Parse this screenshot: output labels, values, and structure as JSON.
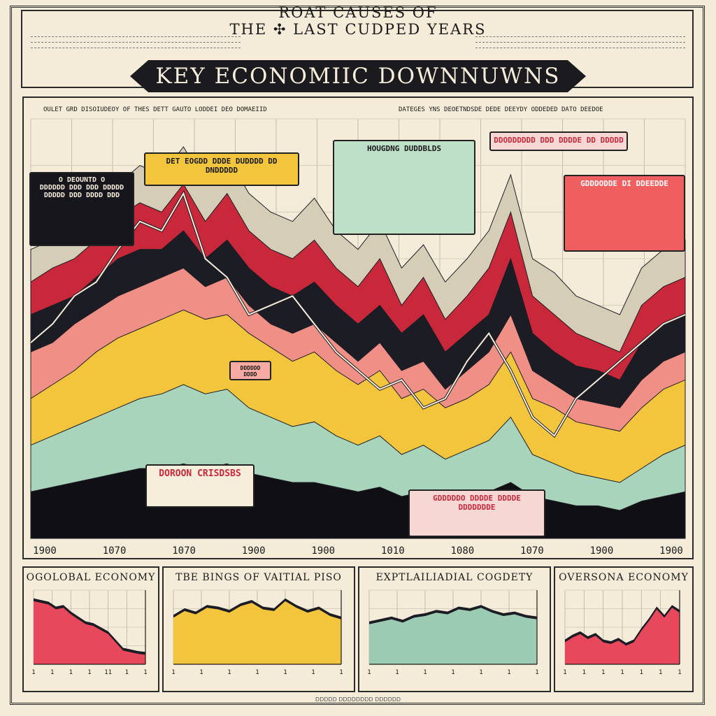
{
  "header": {
    "super_title_line1": "ROAT CAUSES OF",
    "super_title_line2": "THE ✣ LAST CUDPED YEARS",
    "title": "KEY ECONOMIIC DOWNNUWNS",
    "subtitle_left": "OULET GRD DISOIUDEOY OF THES DETT GAUTO LODDEI DEO DOMAEIID",
    "subtitle_right": "DATEGES YNS DEOETNDSDE DEDE DEEYDY ODDEDED DATO DEEDOE"
  },
  "callouts": {
    "black_box": "O DEOUNTD O\nDDDDDD DDD DDD DDDDD\nDDDDD DDD DDDD DDD",
    "yellow_box": "DET EOGDD DDDE DUDDDD DD DNDDDDD",
    "housing": "HOUGDNG DUDDBLDS",
    "pink_top": "DDODDDDDD DDD DDDDE DD DDDDD",
    "red_box": "GDDDODDE DI DDEEDDE",
    "crisis": "DOROON CRISDSBS",
    "pink_bottom": "GDDDDDO DDDDE DDDDE DDDDDDDE",
    "small_pink": "DDDDDD DDDD"
  },
  "chart_data": [
    {
      "type": "area",
      "title": "KEY ECONOMIIC DOWNNUWNS",
      "xlabel": "",
      "ylabel": "",
      "x_tick_labels": [
        "1900",
        "1070",
        "1070",
        "1900",
        "1900",
        "1010",
        "1080",
        "1070",
        "1900",
        "1900"
      ],
      "grid": true,
      "legend": "none",
      "x": [
        0,
        1,
        2,
        3,
        4,
        5,
        6,
        7,
        8,
        9,
        10,
        11,
        12,
        13,
        14,
        15,
        16,
        17,
        18,
        19,
        20,
        21,
        22,
        23,
        24,
        25,
        26,
        27,
        28,
        29,
        30
      ],
      "series": [
        {
          "color": "#d6cdb7",
          "values": [
            62,
            64,
            66,
            71,
            76,
            80,
            78,
            84,
            76,
            82,
            74,
            70,
            68,
            73,
            66,
            62,
            68,
            58,
            63,
            55,
            60,
            66,
            78,
            60,
            57,
            52,
            50,
            48,
            58,
            62,
            64
          ]
        },
        {
          "color": "#c8283a",
          "values": [
            55,
            58,
            60,
            64,
            69,
            72,
            70,
            76,
            68,
            74,
            66,
            62,
            60,
            64,
            58,
            54,
            60,
            50,
            56,
            47,
            52,
            58,
            70,
            52,
            48,
            44,
            42,
            40,
            50,
            54,
            56
          ]
        },
        {
          "color": "#1c1c24",
          "values": [
            48,
            50,
            52,
            56,
            60,
            62,
            62,
            66,
            60,
            64,
            58,
            54,
            52,
            55,
            50,
            46,
            50,
            44,
            48,
            40,
            44,
            48,
            60,
            44,
            40,
            37,
            36,
            34,
            42,
            46,
            48
          ]
        },
        {
          "color": "#f08f86",
          "values": [
            40,
            42,
            46,
            49,
            52,
            54,
            56,
            58,
            54,
            56,
            50,
            46,
            44,
            46,
            42,
            38,
            42,
            36,
            38,
            32,
            36,
            40,
            48,
            36,
            33,
            30,
            29,
            28,
            34,
            38,
            40
          ]
        },
        {
          "color": "#f2c53d",
          "values": [
            30,
            33,
            36,
            40,
            43,
            45,
            47,
            49,
            47,
            48,
            44,
            41,
            38,
            40,
            36,
            33,
            36,
            30,
            32,
            28,
            30,
            33,
            40,
            30,
            28,
            25,
            24,
            23,
            28,
            32,
            34
          ]
        },
        {
          "color": "#a9d4bc",
          "values": [
            20,
            22,
            24,
            26,
            28,
            30,
            31,
            33,
            31,
            32,
            28,
            26,
            24,
            25,
            22,
            20,
            22,
            18,
            20,
            17,
            19,
            21,
            26,
            18,
            16,
            14,
            13,
            12,
            15,
            18,
            20
          ]
        },
        {
          "color": "#101014",
          "values": [
            10,
            11,
            12,
            13,
            14,
            15,
            15,
            16,
            15,
            16,
            14,
            13,
            12,
            12,
            11,
            10,
            11,
            9,
            10,
            8,
            9,
            10,
            12,
            9,
            8,
            7,
            7,
            6,
            8,
            9,
            10
          ]
        }
      ],
      "overlay_line": {
        "color": "#f6eedb",
        "values": [
          42,
          46,
          52,
          55,
          62,
          68,
          66,
          74,
          60,
          56,
          48,
          50,
          52,
          46,
          40,
          36,
          32,
          34,
          28,
          30,
          38,
          44,
          36,
          26,
          22,
          30,
          34,
          38,
          42,
          46,
          48
        ]
      }
    },
    {
      "type": "area",
      "title": "OGOLOBAL ECONOMY",
      "color": "#e8485b",
      "values": [
        80,
        78,
        76,
        70,
        72,
        64,
        58,
        52,
        50,
        45,
        40,
        30,
        20,
        18,
        16,
        15
      ],
      "x_tick_labels": [
        "1",
        "1",
        "1",
        "1",
        "11",
        "1",
        "1"
      ]
    },
    {
      "type": "area",
      "title": "TBE BINGS OF VAITIAL PISO",
      "color": "#f2c53d",
      "values": [
        60,
        68,
        64,
        72,
        70,
        66,
        74,
        78,
        70,
        68,
        80,
        72,
        66,
        70,
        62,
        58
      ],
      "x_tick_labels": [
        "1",
        "1",
        "1",
        "1",
        "1",
        "1",
        "1"
      ]
    },
    {
      "type": "area",
      "title": "EXPTLAILIADIAL COGDETY",
      "color": "#9ccbb4",
      "values": [
        52,
        55,
        58,
        54,
        60,
        62,
        66,
        64,
        70,
        68,
        72,
        66,
        62,
        64,
        60,
        58
      ],
      "x_tick_labels": [
        "1",
        "1",
        "1",
        "1",
        "1",
        "1",
        "1"
      ]
    },
    {
      "type": "area",
      "title": "OVERSONA ECONOMY",
      "color": "#e8485b",
      "values": [
        30,
        36,
        40,
        34,
        38,
        30,
        28,
        32,
        26,
        30,
        44,
        56,
        70,
        60,
        72,
        66
      ],
      "x_tick_labels": [
        "1",
        "1",
        "1",
        "1",
        "1",
        "1",
        "1"
      ]
    }
  ],
  "footer": "DDDDD DDDDDDDD DDDDDD"
}
